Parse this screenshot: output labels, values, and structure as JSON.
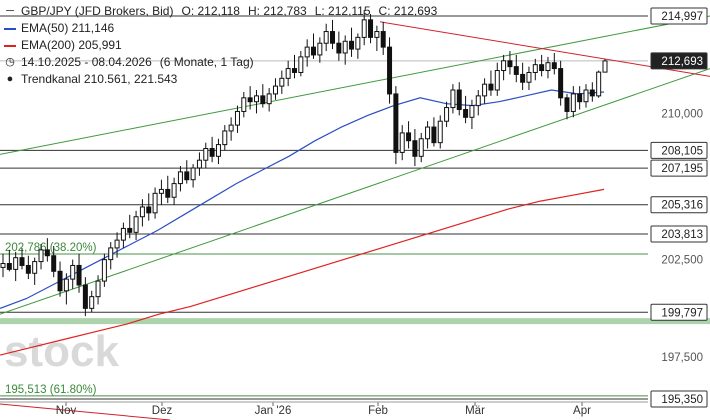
{
  "legend": {
    "instrument": "GBP/JPY (JFD Brokers, Bid)",
    "ohlc_o": "O: 212,118",
    "ohlc_h": "H: 212,783",
    "ohlc_l": "L: 212,115",
    "ohlc_c": "C: 212,693",
    "ema50": "EMA(50)  211,146",
    "ema200": "EMA(200)  205,991",
    "period": "14.10.2025 - 08.04.2026",
    "period_detail": "(6 Monate, 1 Tag)",
    "trend": "Trendkanal  210.561, 221.543"
  },
  "watermark": "stock",
  "colors": {
    "ema50": "#2a4fc4",
    "ema200": "#e0211f",
    "trend": "#3f9a3f",
    "resistance": "#d41f2e",
    "candle": "#111111",
    "level": "#333333",
    "fib_band": "#9fcb9f"
  },
  "chart_data": {
    "type": "candlestick",
    "y_axis_ticks": [
      "214,997",
      "212,693",
      "210,000",
      "208,105",
      "207,195",
      "205,316",
      "203,813",
      "202,500",
      "199,797",
      "197,500",
      "195,350"
    ],
    "ylim": [
      195.2,
      215.6
    ],
    "x_ticks": [
      "Nov",
      "Dez",
      "Jan '26",
      "Feb",
      "Mär",
      "Apr"
    ],
    "price_labels": [
      {
        "label": "214,997",
        "value": 214.997,
        "style": "box"
      },
      {
        "label": "212,693",
        "value": 212.693,
        "style": "dark"
      },
      {
        "label": "210,000",
        "value": 210.0,
        "style": "plain"
      },
      {
        "label": "208,105",
        "value": 208.105,
        "style": "box"
      },
      {
        "label": "207,195",
        "value": 207.195,
        "style": "box"
      },
      {
        "label": "205,316",
        "value": 205.316,
        "style": "box"
      },
      {
        "label": "203,813",
        "value": 203.813,
        "style": "box"
      },
      {
        "label": "202,500",
        "value": 202.5,
        "style": "plain"
      },
      {
        "label": "199,797",
        "value": 199.797,
        "style": "box"
      },
      {
        "label": "197,500",
        "value": 197.5,
        "style": "plain"
      },
      {
        "label": "195,350",
        "value": 195.35,
        "style": "box"
      }
    ],
    "fib_levels": [
      {
        "label": "202,786 (38.20%)",
        "value": 202.786
      },
      {
        "label": "195,513 (61.80%)",
        "value": 195.513
      }
    ],
    "fib_zone": [
      199.2,
      199.5
    ],
    "ema50": [
      200.0,
      200.5,
      201.2,
      201.9,
      202.6,
      203.3,
      204.0,
      204.8,
      205.6,
      206.4,
      207.1,
      207.8,
      208.6,
      209.3,
      209.9,
      210.4,
      210.8,
      210.5,
      210.4,
      210.6,
      210.9,
      211.2,
      211.0,
      211.1
    ],
    "ema200": [
      197.6,
      198.0,
      198.4,
      198.8,
      199.2,
      199.7,
      200.1,
      200.6,
      201.1,
      201.6,
      202.1,
      202.6,
      203.1,
      203.6,
      204.1,
      204.6,
      205.1,
      205.5,
      205.8,
      206.1
    ],
    "trend_upper": [
      [
        0,
        207.9
      ],
      [
        1,
        215.0
      ]
    ],
    "trend_lower": [
      [
        0,
        199.7
      ],
      [
        1,
        212.3
      ]
    ],
    "resistance": [
      [
        0,
        214.7
      ],
      [
        1,
        211.9
      ]
    ],
    "candles": [
      [
        202.1,
        202.8,
        201.6,
        202.3
      ],
      [
        202.3,
        203.0,
        201.9,
        202.0
      ],
      [
        202.0,
        202.9,
        201.4,
        202.6
      ],
      [
        202.6,
        203.1,
        202.0,
        202.2
      ],
      [
        202.2,
        202.7,
        201.5,
        201.8
      ],
      [
        201.8,
        202.6,
        201.2,
        202.4
      ],
      [
        202.4,
        203.3,
        202.0,
        203.0
      ],
      [
        203.0,
        203.6,
        202.4,
        202.7
      ],
      [
        202.7,
        203.2,
        201.6,
        201.9
      ],
      [
        201.9,
        202.4,
        200.6,
        200.9
      ],
      [
        200.9,
        201.8,
        200.2,
        201.5
      ],
      [
        201.5,
        202.5,
        201.0,
        202.2
      ],
      [
        202.2,
        202.8,
        200.8,
        201.2
      ],
      [
        201.2,
        201.6,
        199.6,
        200.0
      ],
      [
        200.0,
        200.9,
        199.8,
        200.6
      ],
      [
        200.6,
        201.7,
        200.2,
        201.4
      ],
      [
        201.4,
        202.8,
        201.1,
        202.5
      ],
      [
        202.5,
        203.4,
        202.0,
        203.1
      ],
      [
        203.1,
        203.9,
        202.6,
        203.5
      ],
      [
        203.5,
        204.4,
        203.1,
        204.1
      ],
      [
        204.1,
        204.8,
        203.6,
        203.9
      ],
      [
        203.9,
        205.0,
        203.5,
        204.7
      ],
      [
        204.7,
        205.6,
        204.2,
        205.2
      ],
      [
        205.2,
        205.9,
        204.5,
        204.9
      ],
      [
        204.9,
        206.2,
        204.6,
        205.9
      ],
      [
        205.9,
        206.6,
        205.3,
        206.1
      ],
      [
        206.1,
        206.8,
        205.4,
        205.7
      ],
      [
        205.7,
        206.7,
        205.3,
        206.4
      ],
      [
        206.4,
        207.3,
        206.0,
        207.0
      ],
      [
        207.0,
        207.6,
        206.4,
        206.6
      ],
      [
        206.6,
        207.4,
        206.2,
        207.2
      ],
      [
        207.2,
        208.0,
        206.8,
        207.6
      ],
      [
        207.6,
        208.5,
        207.2,
        208.2
      ],
      [
        208.2,
        208.8,
        207.5,
        207.8
      ],
      [
        207.8,
        208.7,
        207.4,
        208.4
      ],
      [
        208.4,
        209.4,
        208.1,
        209.1
      ],
      [
        209.1,
        209.8,
        208.6,
        209.4
      ],
      [
        209.4,
        210.4,
        209.0,
        210.1
      ],
      [
        210.1,
        211.1,
        209.8,
        210.8
      ],
      [
        210.8,
        211.4,
        210.2,
        210.6
      ],
      [
        210.6,
        211.2,
        210.0,
        210.9
      ],
      [
        210.9,
        211.5,
        210.3,
        210.5
      ],
      [
        210.5,
        211.3,
        210.1,
        211.0
      ],
      [
        211.0,
        211.8,
        210.7,
        211.4
      ],
      [
        211.4,
        212.2,
        211.0,
        211.8
      ],
      [
        211.8,
        212.7,
        211.4,
        212.3
      ],
      [
        212.3,
        213.0,
        211.8,
        212.1
      ],
      [
        212.1,
        213.2,
        211.9,
        212.9
      ],
      [
        212.9,
        213.8,
        212.4,
        213.4
      ],
      [
        213.4,
        214.1,
        212.8,
        213.0
      ],
      [
        213.0,
        213.9,
        212.6,
        213.6
      ],
      [
        213.6,
        214.6,
        213.2,
        214.2
      ],
      [
        214.2,
        214.8,
        213.3,
        213.6
      ],
      [
        213.6,
        214.2,
        212.7,
        213.1
      ],
      [
        213.1,
        214.0,
        212.5,
        213.7
      ],
      [
        213.7,
        214.4,
        212.9,
        213.3
      ],
      [
        213.3,
        214.1,
        212.8,
        213.9
      ],
      [
        213.9,
        215.3,
        213.5,
        214.8
      ],
      [
        214.8,
        215.1,
        213.6,
        213.9
      ],
      [
        213.9,
        214.5,
        213.2,
        214.2
      ],
      [
        214.2,
        214.7,
        213.0,
        213.4
      ],
      [
        213.4,
        213.9,
        210.5,
        211.0
      ],
      [
        211.0,
        211.4,
        207.4,
        208.0
      ],
      [
        208.0,
        209.4,
        207.6,
        209.0
      ],
      [
        209.0,
        209.6,
        208.2,
        208.6
      ],
      [
        208.6,
        209.2,
        207.3,
        207.8
      ],
      [
        207.8,
        209.0,
        207.5,
        208.7
      ],
      [
        208.7,
        209.6,
        208.2,
        209.3
      ],
      [
        209.3,
        209.8,
        208.3,
        208.5
      ],
      [
        208.5,
        209.9,
        208.2,
        209.6
      ],
      [
        209.6,
        210.6,
        209.3,
        210.3
      ],
      [
        210.3,
        211.5,
        210.0,
        211.2
      ],
      [
        211.2,
        211.6,
        209.9,
        210.2
      ],
      [
        210.2,
        210.9,
        209.5,
        209.8
      ],
      [
        209.8,
        210.7,
        209.2,
        210.4
      ],
      [
        210.4,
        211.2,
        209.9,
        210.9
      ],
      [
        210.9,
        211.8,
        210.5,
        211.5
      ],
      [
        211.5,
        212.2,
        210.9,
        211.2
      ],
      [
        211.2,
        212.6,
        210.9,
        212.2
      ],
      [
        212.2,
        213.0,
        211.7,
        212.7
      ],
      [
        212.7,
        213.2,
        212.0,
        212.4
      ],
      [
        212.4,
        213.0,
        211.6,
        212.0
      ],
      [
        212.0,
        212.6,
        211.2,
        211.6
      ],
      [
        211.6,
        212.4,
        211.2,
        212.1
      ],
      [
        212.1,
        212.8,
        211.7,
        212.5
      ],
      [
        212.5,
        213.0,
        211.9,
        212.2
      ],
      [
        212.2,
        212.9,
        211.8,
        212.6
      ],
      [
        212.6,
        213.1,
        212.0,
        212.3
      ],
      [
        212.3,
        212.7,
        210.4,
        210.8
      ],
      [
        210.8,
        211.0,
        209.7,
        210.1
      ],
      [
        210.1,
        211.4,
        209.8,
        211.0
      ],
      [
        211.0,
        211.4,
        210.2,
        210.6
      ],
      [
        210.6,
        211.5,
        210.3,
        211.2
      ],
      [
        211.2,
        211.6,
        210.6,
        210.9
      ],
      [
        210.9,
        212.2,
        210.8,
        212.118
      ],
      [
        212.118,
        212.783,
        212.115,
        212.693
      ]
    ]
  }
}
